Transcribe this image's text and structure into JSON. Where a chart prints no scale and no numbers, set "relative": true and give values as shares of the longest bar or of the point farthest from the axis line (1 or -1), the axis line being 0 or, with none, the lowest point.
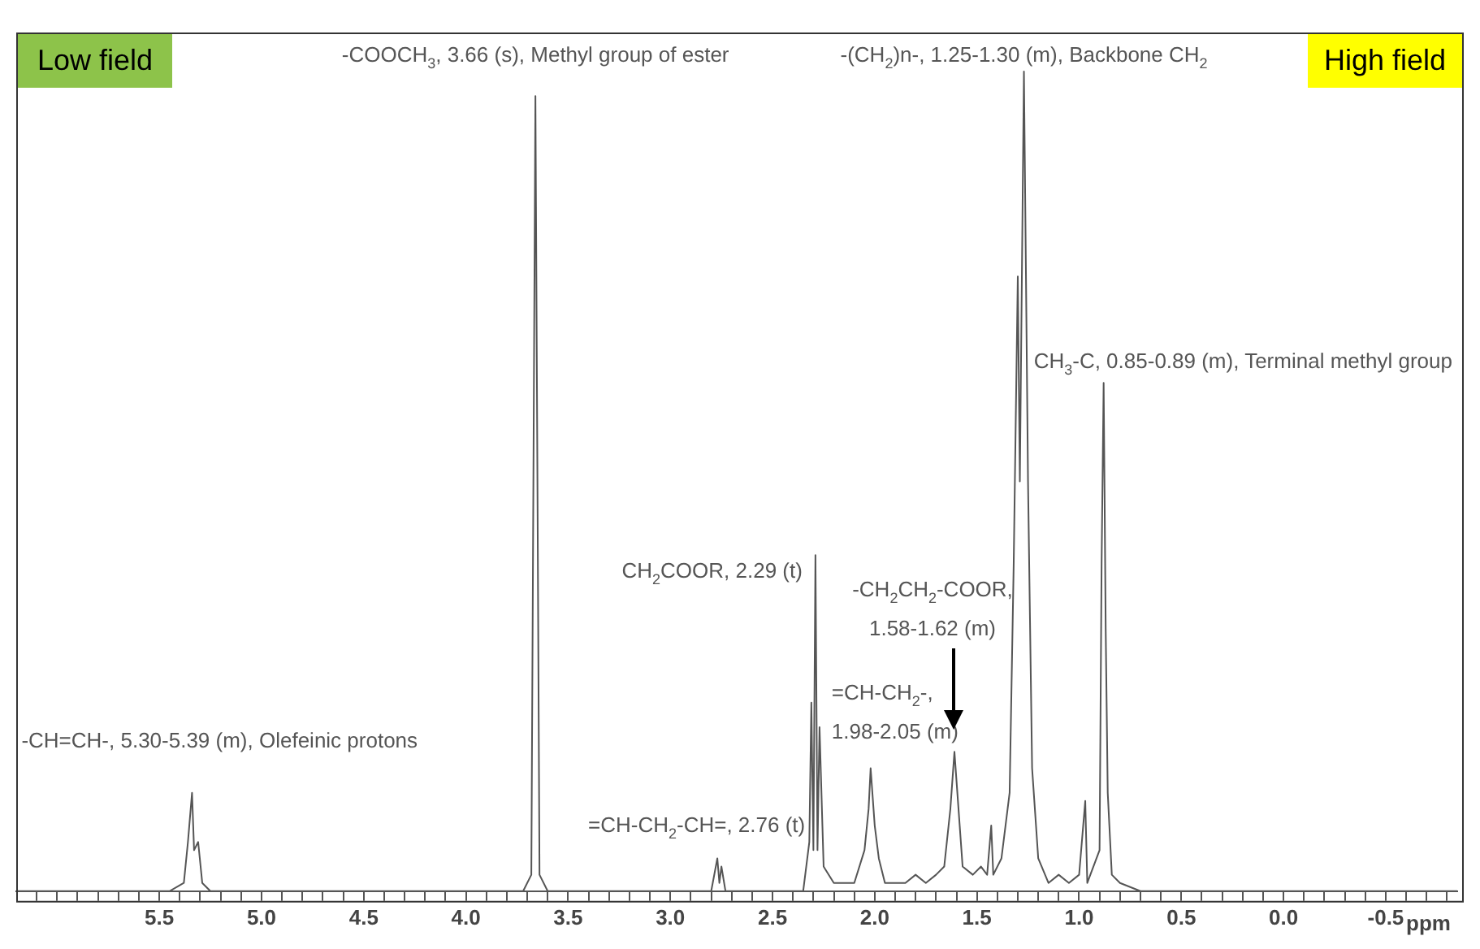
{
  "chart_data": {
    "type": "line",
    "relative": true,
    "xlabel": "ppm",
    "xlim": [
      6.2,
      -0.85
    ],
    "xticks": [
      {
        "value": 6.1,
        "label": null
      },
      {
        "value": 6.0,
        "label": null
      },
      {
        "value": 5.9,
        "label": null
      },
      {
        "value": 5.8,
        "label": null
      },
      {
        "value": 5.7,
        "label": null
      },
      {
        "value": 5.6,
        "label": null
      },
      {
        "value": 5.5,
        "label": "5.5"
      },
      {
        "value": 5.4,
        "label": null
      },
      {
        "value": 5.3,
        "label": null
      },
      {
        "value": 5.2,
        "label": null
      },
      {
        "value": 5.1,
        "label": null
      },
      {
        "value": 5.0,
        "label": "5.0"
      },
      {
        "value": 4.9,
        "label": null
      },
      {
        "value": 4.8,
        "label": null
      },
      {
        "value": 4.7,
        "label": null
      },
      {
        "value": 4.6,
        "label": null
      },
      {
        "value": 4.5,
        "label": "4.5"
      },
      {
        "value": 4.4,
        "label": null
      },
      {
        "value": 4.3,
        "label": null
      },
      {
        "value": 4.2,
        "label": null
      },
      {
        "value": 4.1,
        "label": null
      },
      {
        "value": 4.0,
        "label": "4.0"
      },
      {
        "value": 3.9,
        "label": null
      },
      {
        "value": 3.8,
        "label": null
      },
      {
        "value": 3.7,
        "label": null
      },
      {
        "value": 3.6,
        "label": null
      },
      {
        "value": 3.5,
        "label": "3.5"
      },
      {
        "value": 3.4,
        "label": null
      },
      {
        "value": 3.3,
        "label": null
      },
      {
        "value": 3.2,
        "label": null
      },
      {
        "value": 3.1,
        "label": null
      },
      {
        "value": 3.0,
        "label": "3.0"
      },
      {
        "value": 2.9,
        "label": null
      },
      {
        "value": 2.8,
        "label": null
      },
      {
        "value": 2.7,
        "label": null
      },
      {
        "value": 2.6,
        "label": null
      },
      {
        "value": 2.5,
        "label": "2.5"
      },
      {
        "value": 2.4,
        "label": null
      },
      {
        "value": 2.3,
        "label": null
      },
      {
        "value": 2.2,
        "label": null
      },
      {
        "value": 2.1,
        "label": null
      },
      {
        "value": 2.0,
        "label": "2.0"
      },
      {
        "value": 1.9,
        "label": null
      },
      {
        "value": 1.8,
        "label": null
      },
      {
        "value": 1.7,
        "label": null
      },
      {
        "value": 1.6,
        "label": null
      },
      {
        "value": 1.5,
        "label": "1.5"
      },
      {
        "value": 1.4,
        "label": null
      },
      {
        "value": 1.3,
        "label": null
      },
      {
        "value": 1.2,
        "label": null
      },
      {
        "value": 1.1,
        "label": null
      },
      {
        "value": 1.0,
        "label": "1.0"
      },
      {
        "value": 0.9,
        "label": null
      },
      {
        "value": 0.8,
        "label": null
      },
      {
        "value": 0.7,
        "label": null
      },
      {
        "value": 0.6,
        "label": null
      },
      {
        "value": 0.5,
        "label": "0.5"
      },
      {
        "value": 0.4,
        "label": null
      },
      {
        "value": 0.3,
        "label": null
      },
      {
        "value": 0.2,
        "label": null
      },
      {
        "value": 0.1,
        "label": null
      },
      {
        "value": 0.0,
        "label": "0.0"
      },
      {
        "value": -0.1,
        "label": null
      },
      {
        "value": -0.2,
        "label": null
      },
      {
        "value": -0.3,
        "label": null
      },
      {
        "value": -0.4,
        "label": null
      },
      {
        "value": -0.5,
        "label": "-0.5"
      },
      {
        "value": -0.6,
        "label": null
      },
      {
        "value": -0.7,
        "label": null
      },
      {
        "value": -0.8,
        "label": null
      }
    ],
    "grid": false,
    "legend": false,
    "marker": "none",
    "line_style": "solid",
    "series": [
      {
        "color": "#555555",
        "x": [
          6.2,
          5.45,
          5.38,
          5.36,
          5.34,
          5.33,
          5.31,
          5.29,
          5.25,
          3.72,
          3.68,
          3.66,
          3.64,
          3.6,
          2.8,
          2.77,
          2.76,
          2.75,
          2.73,
          2.35,
          2.32,
          2.31,
          2.3,
          2.29,
          2.28,
          2.27,
          2.25,
          2.2,
          2.1,
          2.05,
          2.03,
          2.02,
          2.0,
          1.98,
          1.95,
          1.85,
          1.8,
          1.75,
          1.7,
          1.66,
          1.63,
          1.61,
          1.59,
          1.57,
          1.52,
          1.48,
          1.45,
          1.43,
          1.42,
          1.38,
          1.34,
          1.32,
          1.3,
          1.29,
          1.27,
          1.25,
          1.23,
          1.2,
          1.15,
          1.1,
          1.05,
          1.0,
          0.97,
          0.96,
          0.9,
          0.89,
          0.88,
          0.87,
          0.86,
          0.84,
          0.8,
          0.7,
          -0.85
        ],
        "values": [
          0,
          0,
          0.01,
          0.06,
          0.12,
          0.05,
          0.06,
          0.01,
          0,
          0,
          0.02,
          0.97,
          0.02,
          0,
          0,
          0.04,
          0.01,
          0.03,
          0,
          0,
          0.06,
          0.23,
          0.05,
          0.41,
          0.05,
          0.2,
          0.03,
          0.01,
          0.01,
          0.05,
          0.1,
          0.15,
          0.08,
          0.04,
          0.01,
          0.01,
          0.02,
          0.01,
          0.02,
          0.03,
          0.1,
          0.17,
          0.1,
          0.03,
          0.02,
          0.03,
          0.02,
          0.08,
          0.02,
          0.04,
          0.12,
          0.4,
          0.75,
          0.5,
          1,
          0.5,
          0.15,
          0.04,
          0.01,
          0.02,
          0.01,
          0.02,
          0.11,
          0.01,
          0.05,
          0.4,
          0.62,
          0.32,
          0.12,
          0.02,
          0.01,
          0,
          0
        ]
      }
    ],
    "annotations": [
      {
        "text": "-COOCH$_{3}$, 3.66 (s), Methyl group of ester",
        "x": 3.66,
        "y": 0.97
      },
      {
        "text": "-(CH$_{2}$)n-, 1.25-1.30 (m), Backbone CH$_{2}$",
        "x": 1.27,
        "y": 1
      },
      {
        "text": "CH$_{3}$-C, 0.85-0.89 (m), Terminal methyl group",
        "x": 0.88,
        "y": 0.62
      },
      {
        "text": "CH$_{2}$COOR, 2.29 (t)",
        "x": 2.29,
        "y": 0.41
      },
      "-CH$_{2}$CH$_{2}$-COOR,\n1.58-1.62 (m)",
      {
        "text": "=CH-CH$_{2}$-,\n1.98-2.05 (m)",
        "x": 2.02,
        "y": 0.15
      },
      {
        "text": "=CH-CH$_{2}$-CH=, 2.76 (t)",
        "x": 2.76,
        "y": 0.04
      },
      {
        "text": "-CH=CH-, 5.30-5.39 (m), Olefeinic protons",
        "x": 5.34,
        "y": 0.12
      },
      "Low field",
      "High field"
    ]
  }
}
